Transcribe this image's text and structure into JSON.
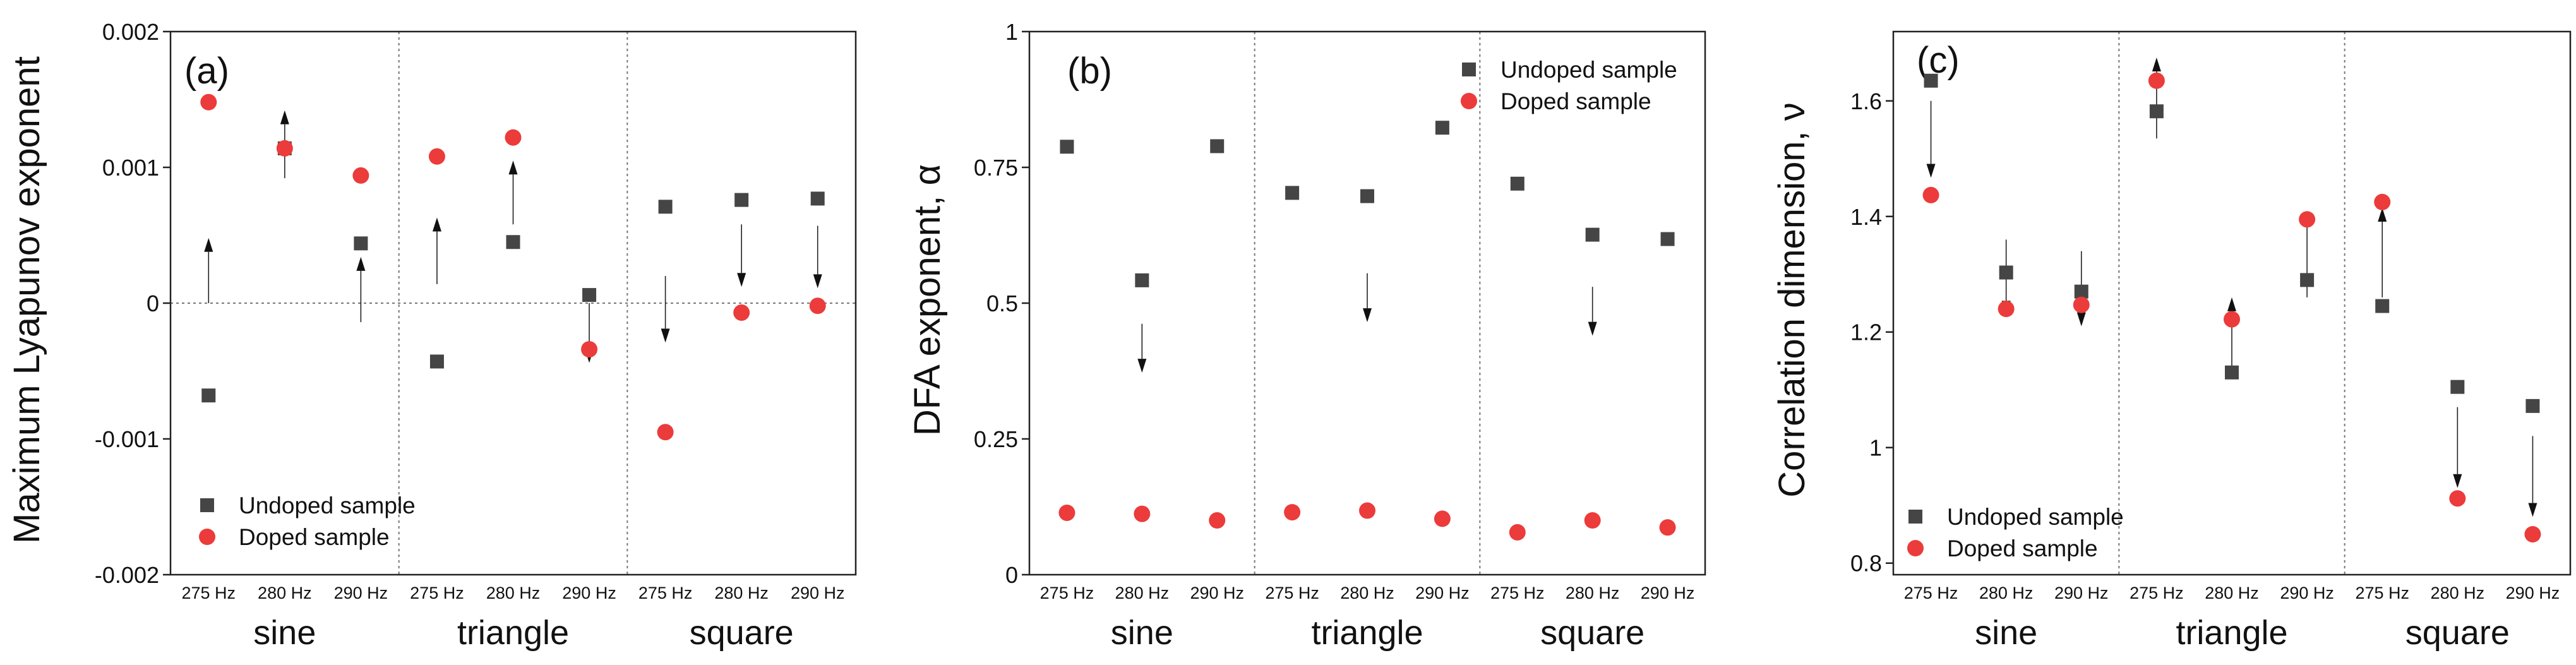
{
  "chart_data": [
    {
      "type": "scatter",
      "panel_label": "(a)",
      "ylabel": "Maximum Lyapunov exponent",
      "ylim": [
        -0.002,
        0.002
      ],
      "yticks": [
        -0.002,
        -0.001,
        0,
        0.001,
        0.002
      ],
      "ytick_labels": [
        "-0.002",
        "-0.001",
        "0",
        "0.001",
        "0.002"
      ],
      "zero_line": true,
      "legend_position": "bottom-left",
      "groups": [
        "sine",
        "triangle",
        "square"
      ],
      "categories": [
        "275 Hz",
        "280 Hz",
        "290 Hz",
        "275 Hz",
        "280 Hz",
        "290 Hz",
        "275 Hz",
        "280 Hz",
        "290 Hz"
      ],
      "series": [
        {
          "name": "Undoped sample",
          "marker": "square",
          "color": "#454545",
          "values": [
            -0.00068,
            0.00114,
            0.00044,
            -0.00043,
            0.00045,
            6e-05,
            0.00071,
            0.00076,
            0.00077
          ]
        },
        {
          "name": "Doped sample",
          "marker": "circle",
          "color": "#ec3b3b",
          "values": [
            0.00148,
            0.00114,
            0.00094,
            0.00108,
            0.00122,
            -0.00034,
            -0.00095,
            -7e-05,
            -2e-05
          ]
        }
      ],
      "arrows": [
        {
          "cat": 0,
          "from": 0,
          "to": 0.00048
        },
        {
          "cat": 1,
          "from": 0.00092,
          "to": 0.00142
        },
        {
          "cat": 2,
          "from": -0.00014,
          "to": 0.00034
        },
        {
          "cat": 3,
          "from": 0.00014,
          "to": 0.00063
        },
        {
          "cat": 4,
          "from": 0.00058,
          "to": 0.00105
        },
        {
          "cat": 5,
          "from": 0,
          "to": -0.00044
        },
        {
          "cat": 6,
          "from": 0.0002,
          "to": -0.00029
        },
        {
          "cat": 7,
          "from": 0.00058,
          "to": 0.00012
        },
        {
          "cat": 8,
          "from": 0.00057,
          "to": 0.00011
        }
      ]
    },
    {
      "type": "scatter",
      "panel_label": "(b)",
      "ylabel": "DFA exponent, α",
      "ylim": [
        0,
        1
      ],
      "yticks": [
        0,
        0.25,
        0.5,
        0.75,
        1
      ],
      "ytick_labels": [
        "0",
        "0.25",
        "0.5",
        "0.75",
        "1"
      ],
      "zero_line": false,
      "legend_position": "top-right",
      "groups": [
        "sine",
        "triangle",
        "square"
      ],
      "categories": [
        "275 Hz",
        "280 Hz",
        "290 Hz",
        "275 Hz",
        "280 Hz",
        "290 Hz",
        "275 Hz",
        "280 Hz",
        "290 Hz"
      ],
      "series": [
        {
          "name": "Undoped sample",
          "marker": "square",
          "color": "#454545",
          "values": [
            0.788,
            0.542,
            0.789,
            0.703,
            0.697,
            0.823,
            0.72,
            0.626,
            0.618
          ]
        },
        {
          "name": "Doped sample",
          "marker": "circle",
          "color": "#ec3b3b",
          "values": [
            0.114,
            0.112,
            0.1,
            0.115,
            0.118,
            0.103,
            0.078,
            0.1,
            0.087
          ]
        }
      ],
      "arrows": [
        {
          "cat": 1,
          "from": 0.462,
          "to": 0.372
        },
        {
          "cat": 4,
          "from": 0.555,
          "to": 0.465
        },
        {
          "cat": 7,
          "from": 0.53,
          "to": 0.44
        }
      ]
    },
    {
      "type": "scatter",
      "panel_label": "(c)",
      "ylabel": "Correlation dimension, ν",
      "ylim": [
        0.78,
        1.72
      ],
      "yticks": [
        0.8,
        1,
        1.2,
        1.4,
        1.6
      ],
      "ytick_labels": [
        "0.8",
        "1",
        "1.2",
        "1.4",
        "1.6"
      ],
      "zero_line": false,
      "legend_position": "bottom-left",
      "groups": [
        "sine",
        "triangle",
        "square"
      ],
      "categories": [
        "275 Hz",
        "280 Hz",
        "290 Hz",
        "275 Hz",
        "280 Hz",
        "290 Hz",
        "275 Hz",
        "280 Hz",
        "290 Hz"
      ],
      "series": [
        {
          "name": "Undoped sample",
          "marker": "square",
          "color": "#454545",
          "values": [
            1.635,
            1.303,
            1.27,
            1.582,
            1.13,
            1.29,
            1.245,
            1.105,
            1.072
          ]
        },
        {
          "name": "Doped sample",
          "marker": "circle",
          "color": "#ec3b3b",
          "values": [
            1.437,
            1.24,
            1.247,
            1.635,
            1.222,
            1.395,
            1.425,
            0.912,
            0.85
          ]
        }
      ],
      "arrows": [
        {
          "cat": 0,
          "from": 1.6,
          "to": 1.467
        },
        {
          "cat": 1,
          "from": 1.36,
          "to": 1.23
        },
        {
          "cat": 2,
          "from": 1.34,
          "to": 1.21
        },
        {
          "cat": 3,
          "from": 1.535,
          "to": 1.675
        },
        {
          "cat": 4,
          "from": 1.12,
          "to": 1.26
        },
        {
          "cat": 5,
          "from": 1.26,
          "to": 1.41
        },
        {
          "cat": 6,
          "from": 1.26,
          "to": 1.415
        },
        {
          "cat": 7,
          "from": 1.07,
          "to": 0.93
        },
        {
          "cat": 8,
          "from": 1.02,
          "to": 0.88
        }
      ]
    }
  ]
}
